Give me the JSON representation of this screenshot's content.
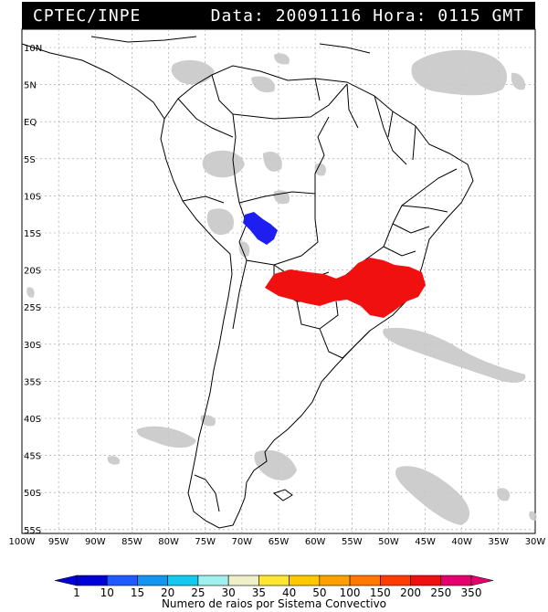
{
  "header": {
    "source": "CPTEC/INPE",
    "date_label": "Data:",
    "date_value": "20091116",
    "hour_label": "Hora:",
    "hour_value": "0115",
    "tz": "GMT"
  },
  "map": {
    "lat_labels": [
      "10N",
      "5N",
      "EQ",
      "5S",
      "10S",
      "15S",
      "20S",
      "25S",
      "30S",
      "35S",
      "40S",
      "45S",
      "50S",
      "55S"
    ],
    "lon_labels": [
      "100W",
      "95W",
      "90W",
      "85W",
      "80W",
      "75W",
      "70W",
      "65W",
      "60W",
      "55W",
      "50W",
      "45W",
      "40W",
      "35W",
      "30W"
    ],
    "colors": {
      "clouds": "#c8c8c8",
      "low_cluster": "#1e1ef0",
      "high_cluster": "#f01010",
      "borders": "#000000"
    }
  },
  "colorbar": {
    "title": "Numero de raios por Sistema Convectivo",
    "ticks": [
      "1",
      "10",
      "15",
      "20",
      "25",
      "30",
      "35",
      "40",
      "50",
      "100",
      "150",
      "200",
      "250",
      "350"
    ],
    "colors": [
      "#0000d8",
      "#1e5aff",
      "#1496f0",
      "#14c8f0",
      "#a0f0f0",
      "#f0f0c8",
      "#ffe632",
      "#ffc800",
      "#ffa000",
      "#ff7800",
      "#ff3c00",
      "#f01010",
      "#e6006e"
    ]
  }
}
